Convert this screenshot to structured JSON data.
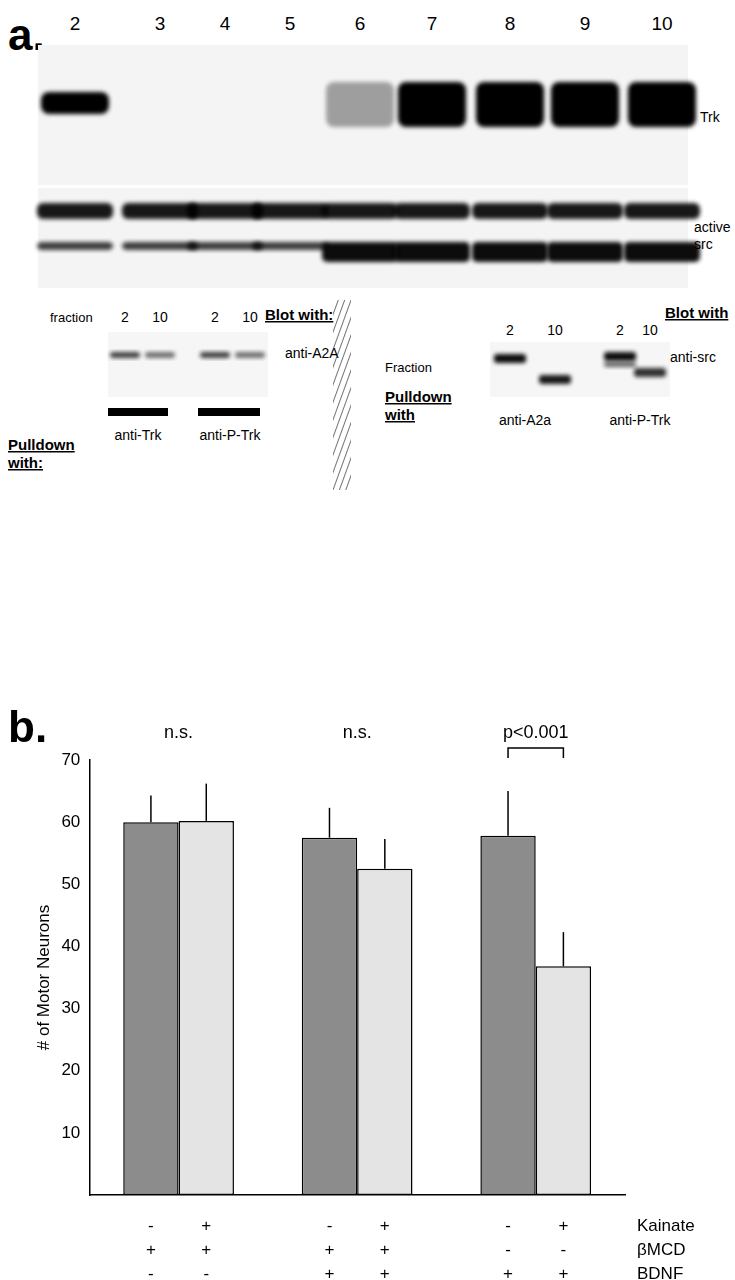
{
  "panel_a": {
    "label": "a.",
    "lanes": [
      "2",
      "3",
      "4",
      "5",
      "6",
      "7",
      "8",
      "9",
      "10"
    ],
    "blot_labels": [
      [
        "Trk"
      ],
      [
        "active",
        "src"
      ]
    ],
    "left_inset": {
      "fraction_label": "fraction",
      "lanes": [
        "2",
        "10",
        "2",
        "10"
      ],
      "blot_with_label": "Blot with:",
      "blot_target": "anti-A2A",
      "pulldown_label": [
        "Pulldown",
        "with:"
      ],
      "pulldowns": [
        "anti-Trk",
        "anti-P-Trk"
      ]
    },
    "right_inset": {
      "fraction_label": "Fraction",
      "lanes": [
        "2",
        "10",
        "2",
        "10"
      ],
      "blot_with_label": "Blot with",
      "blot_target": "anti-src",
      "pulldown_label": [
        "Pulldown",
        "with"
      ],
      "pulldowns": [
        "anti-A2a",
        "anti-P-Trk"
      ]
    }
  },
  "chart_data": {
    "type": "bar",
    "panel_label": "b.",
    "y_label": "# of Motor Neurons",
    "categories": [
      null,
      null,
      null
    ],
    "series": [
      {
        "color": "#8c8c8c",
        "values": [
          60,
          57.5,
          57.8
        ],
        "errors": [
          4.3,
          4.8,
          7.2
        ]
      },
      {
        "color": "#e4e4e4",
        "values": [
          60.2,
          52.5,
          36.8
        ],
        "errors": [
          6,
          4.8,
          5.5
        ]
      }
    ],
    "ylim": [
      0,
      70
    ],
    "yticks": [
      10,
      20,
      30,
      40,
      50,
      60,
      70
    ],
    "grid": false,
    "annotations": [
      {
        "group": 0,
        "text": "n.s."
      },
      {
        "group": 1,
        "text": "n.s."
      }
    ],
    "comparisons": [
      {
        "group": 2,
        "text": "p<0.001"
      }
    ],
    "condition_rows": [
      {
        "label": "Kainate",
        "marks": [
          "-",
          "+",
          "-",
          "+",
          "-",
          "+"
        ]
      },
      {
        "label": "βMCD",
        "marks": [
          "+",
          "+",
          "+",
          "+",
          "-",
          "-"
        ]
      },
      {
        "label": "BDNF",
        "marks": [
          "-",
          "-",
          "+",
          "+",
          "+",
          "+"
        ]
      }
    ]
  }
}
